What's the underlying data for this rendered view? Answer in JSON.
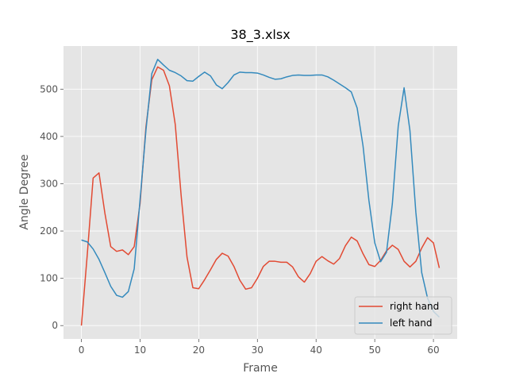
{
  "chart_data": {
    "type": "line",
    "title": "38_3.xlsx",
    "xlabel": "Frame",
    "ylabel": "Angle Degree",
    "xlim": [
      -3.05,
      64.05
    ],
    "ylim": [
      -28.2,
      591.2
    ],
    "xticks": [
      0,
      10,
      20,
      30,
      40,
      50,
      60
    ],
    "yticks": [
      0,
      100,
      200,
      300,
      400,
      500
    ],
    "grid": true,
    "legend_position": "bottom-right",
    "series": [
      {
        "name": "right hand",
        "color": "#E24A33",
        "x": [
          0,
          1,
          2,
          3,
          4,
          5,
          6,
          7,
          8,
          9,
          10,
          11,
          12,
          13,
          14,
          15,
          16,
          17,
          18,
          19,
          20,
          21,
          22,
          23,
          24,
          25,
          26,
          27,
          28,
          29,
          30,
          31,
          32,
          33,
          34,
          35,
          36,
          37,
          38,
          39,
          40,
          41,
          42,
          43,
          44,
          45,
          46,
          47,
          48,
          49,
          50,
          51,
          52,
          53,
          54,
          55,
          56,
          57,
          58,
          59,
          60,
          61
        ],
        "values": [
          0,
          150,
          312,
          323,
          238,
          167,
          157,
          160,
          150,
          167,
          258,
          420,
          520,
          547,
          540,
          507,
          425,
          275,
          145,
          80,
          78,
          97,
          118,
          140,
          153,
          147,
          125,
          96,
          77,
          80,
          100,
          125,
          136,
          136,
          134,
          134,
          124,
          103,
          92,
          110,
          136,
          146,
          137,
          130,
          142,
          169,
          187,
          179,
          152,
          129,
          125,
          138,
          158,
          170,
          161,
          136,
          124,
          136,
          164,
          186,
          175,
          122
        ]
      },
      {
        "name": "left hand",
        "color": "#348ABD",
        "x": [
          0,
          1,
          2,
          3,
          4,
          5,
          6,
          7,
          8,
          9,
          10,
          11,
          12,
          13,
          14,
          15,
          16,
          17,
          18,
          19,
          20,
          21,
          22,
          23,
          24,
          25,
          26,
          27,
          28,
          29,
          30,
          31,
          32,
          33,
          34,
          35,
          36,
          37,
          38,
          39,
          40,
          41,
          42,
          43,
          44,
          45,
          46,
          47,
          48,
          49,
          50,
          51,
          52,
          53,
          54,
          55,
          56,
          57,
          58,
          59,
          60,
          61
        ],
        "values": [
          181,
          177,
          162,
          140,
          112,
          83,
          64,
          60,
          72,
          120,
          266,
          413,
          533,
          563,
          551,
          540,
          535,
          528,
          518,
          517,
          527,
          536,
          528,
          509,
          501,
          514,
          530,
          536,
          535,
          535,
          534,
          530,
          525,
          521,
          522,
          526,
          529,
          530,
          529,
          529,
          530,
          530,
          526,
          519,
          511,
          503,
          494,
          460,
          380,
          265,
          175,
          135,
          155,
          258,
          422,
          503,
          412,
          240,
          112,
          58,
          30,
          18
        ]
      }
    ]
  }
}
